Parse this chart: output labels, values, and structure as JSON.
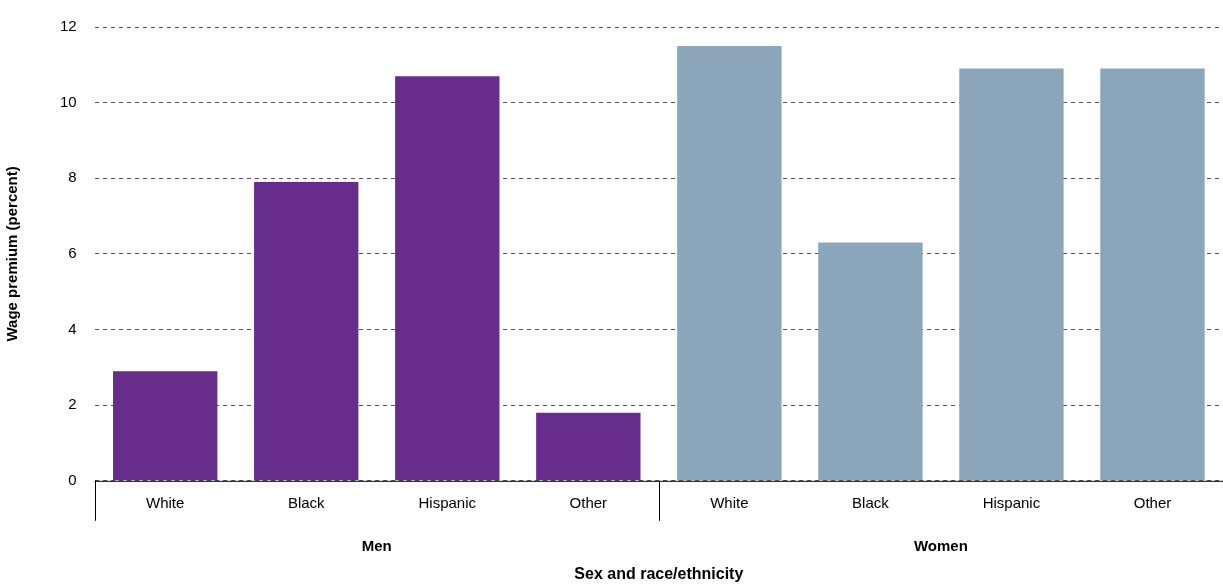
{
  "chart_data": {
    "type": "bar",
    "xlabel": "Sex and race/ethnicity",
    "ylabel": "Wage premium (percent)",
    "categories": [
      "White",
      "Black",
      "Hispanic",
      "Other",
      "White",
      "Black",
      "Hispanic",
      "Other"
    ],
    "values": [
      2.9,
      7.9,
      10.7,
      1.8,
      11.5,
      6.3,
      10.9,
      10.9
    ],
    "colors": [
      "#662d8a",
      "#662d8a",
      "#662d8a",
      "#662d8a",
      "#8ba6ba",
      "#8ba6ba",
      "#8ba6ba",
      "#8ba6ba"
    ],
    "ylim": [
      0,
      12
    ],
    "yticks": [
      0,
      2,
      4,
      6,
      8,
      10,
      12
    ],
    "grid": "y",
    "legend": false,
    "annotations": [
      "Men",
      "Women"
    ]
  }
}
